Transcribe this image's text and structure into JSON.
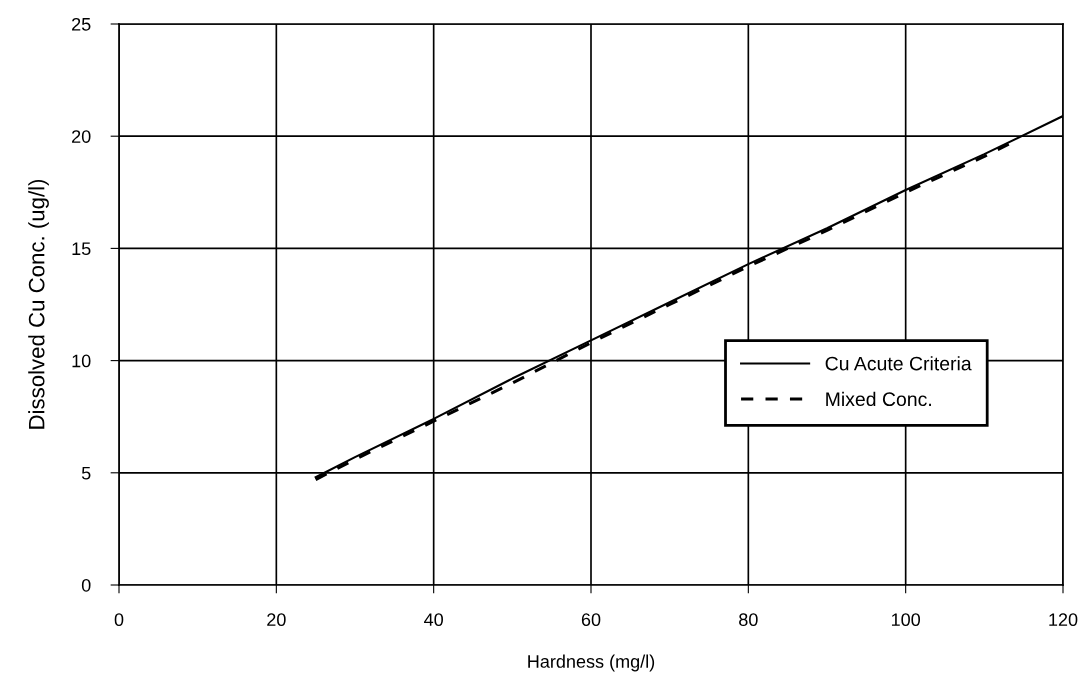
{
  "chart_data": {
    "type": "line",
    "xlabel": "Hardness (mg/l)",
    "ylabel": "Dissolved Cu Conc. (ug/l)",
    "xlim": [
      0,
      120
    ],
    "xticks": [
      0,
      20,
      40,
      60,
      80,
      100,
      120
    ],
    "ylim": [
      0,
      25
    ],
    "yticks": [
      0,
      5,
      10,
      15,
      20,
      25
    ],
    "grid": true,
    "legend": "right",
    "marker": "none",
    "series": [
      {
        "name": "Cu Acute Criteria",
        "color": "#000000",
        "line_style": "solid",
        "x": [
          25,
          30,
          40,
          50,
          60,
          70,
          80,
          90,
          100,
          110,
          120
        ],
        "values": [
          4.8,
          5.7,
          7.4,
          9.2,
          10.9,
          12.6,
          14.3,
          15.9,
          17.6,
          19.2,
          20.9
        ]
      },
      {
        "name": "Mixed Conc.",
        "color": "#000000",
        "line_style": "dashed",
        "x": [
          25,
          30,
          40,
          50,
          60,
          70,
          80,
          90,
          100,
          110,
          114
        ],
        "values": [
          4.7,
          5.6,
          7.3,
          9.0,
          10.8,
          12.5,
          14.2,
          15.8,
          17.5,
          19.1,
          19.8
        ]
      }
    ]
  }
}
